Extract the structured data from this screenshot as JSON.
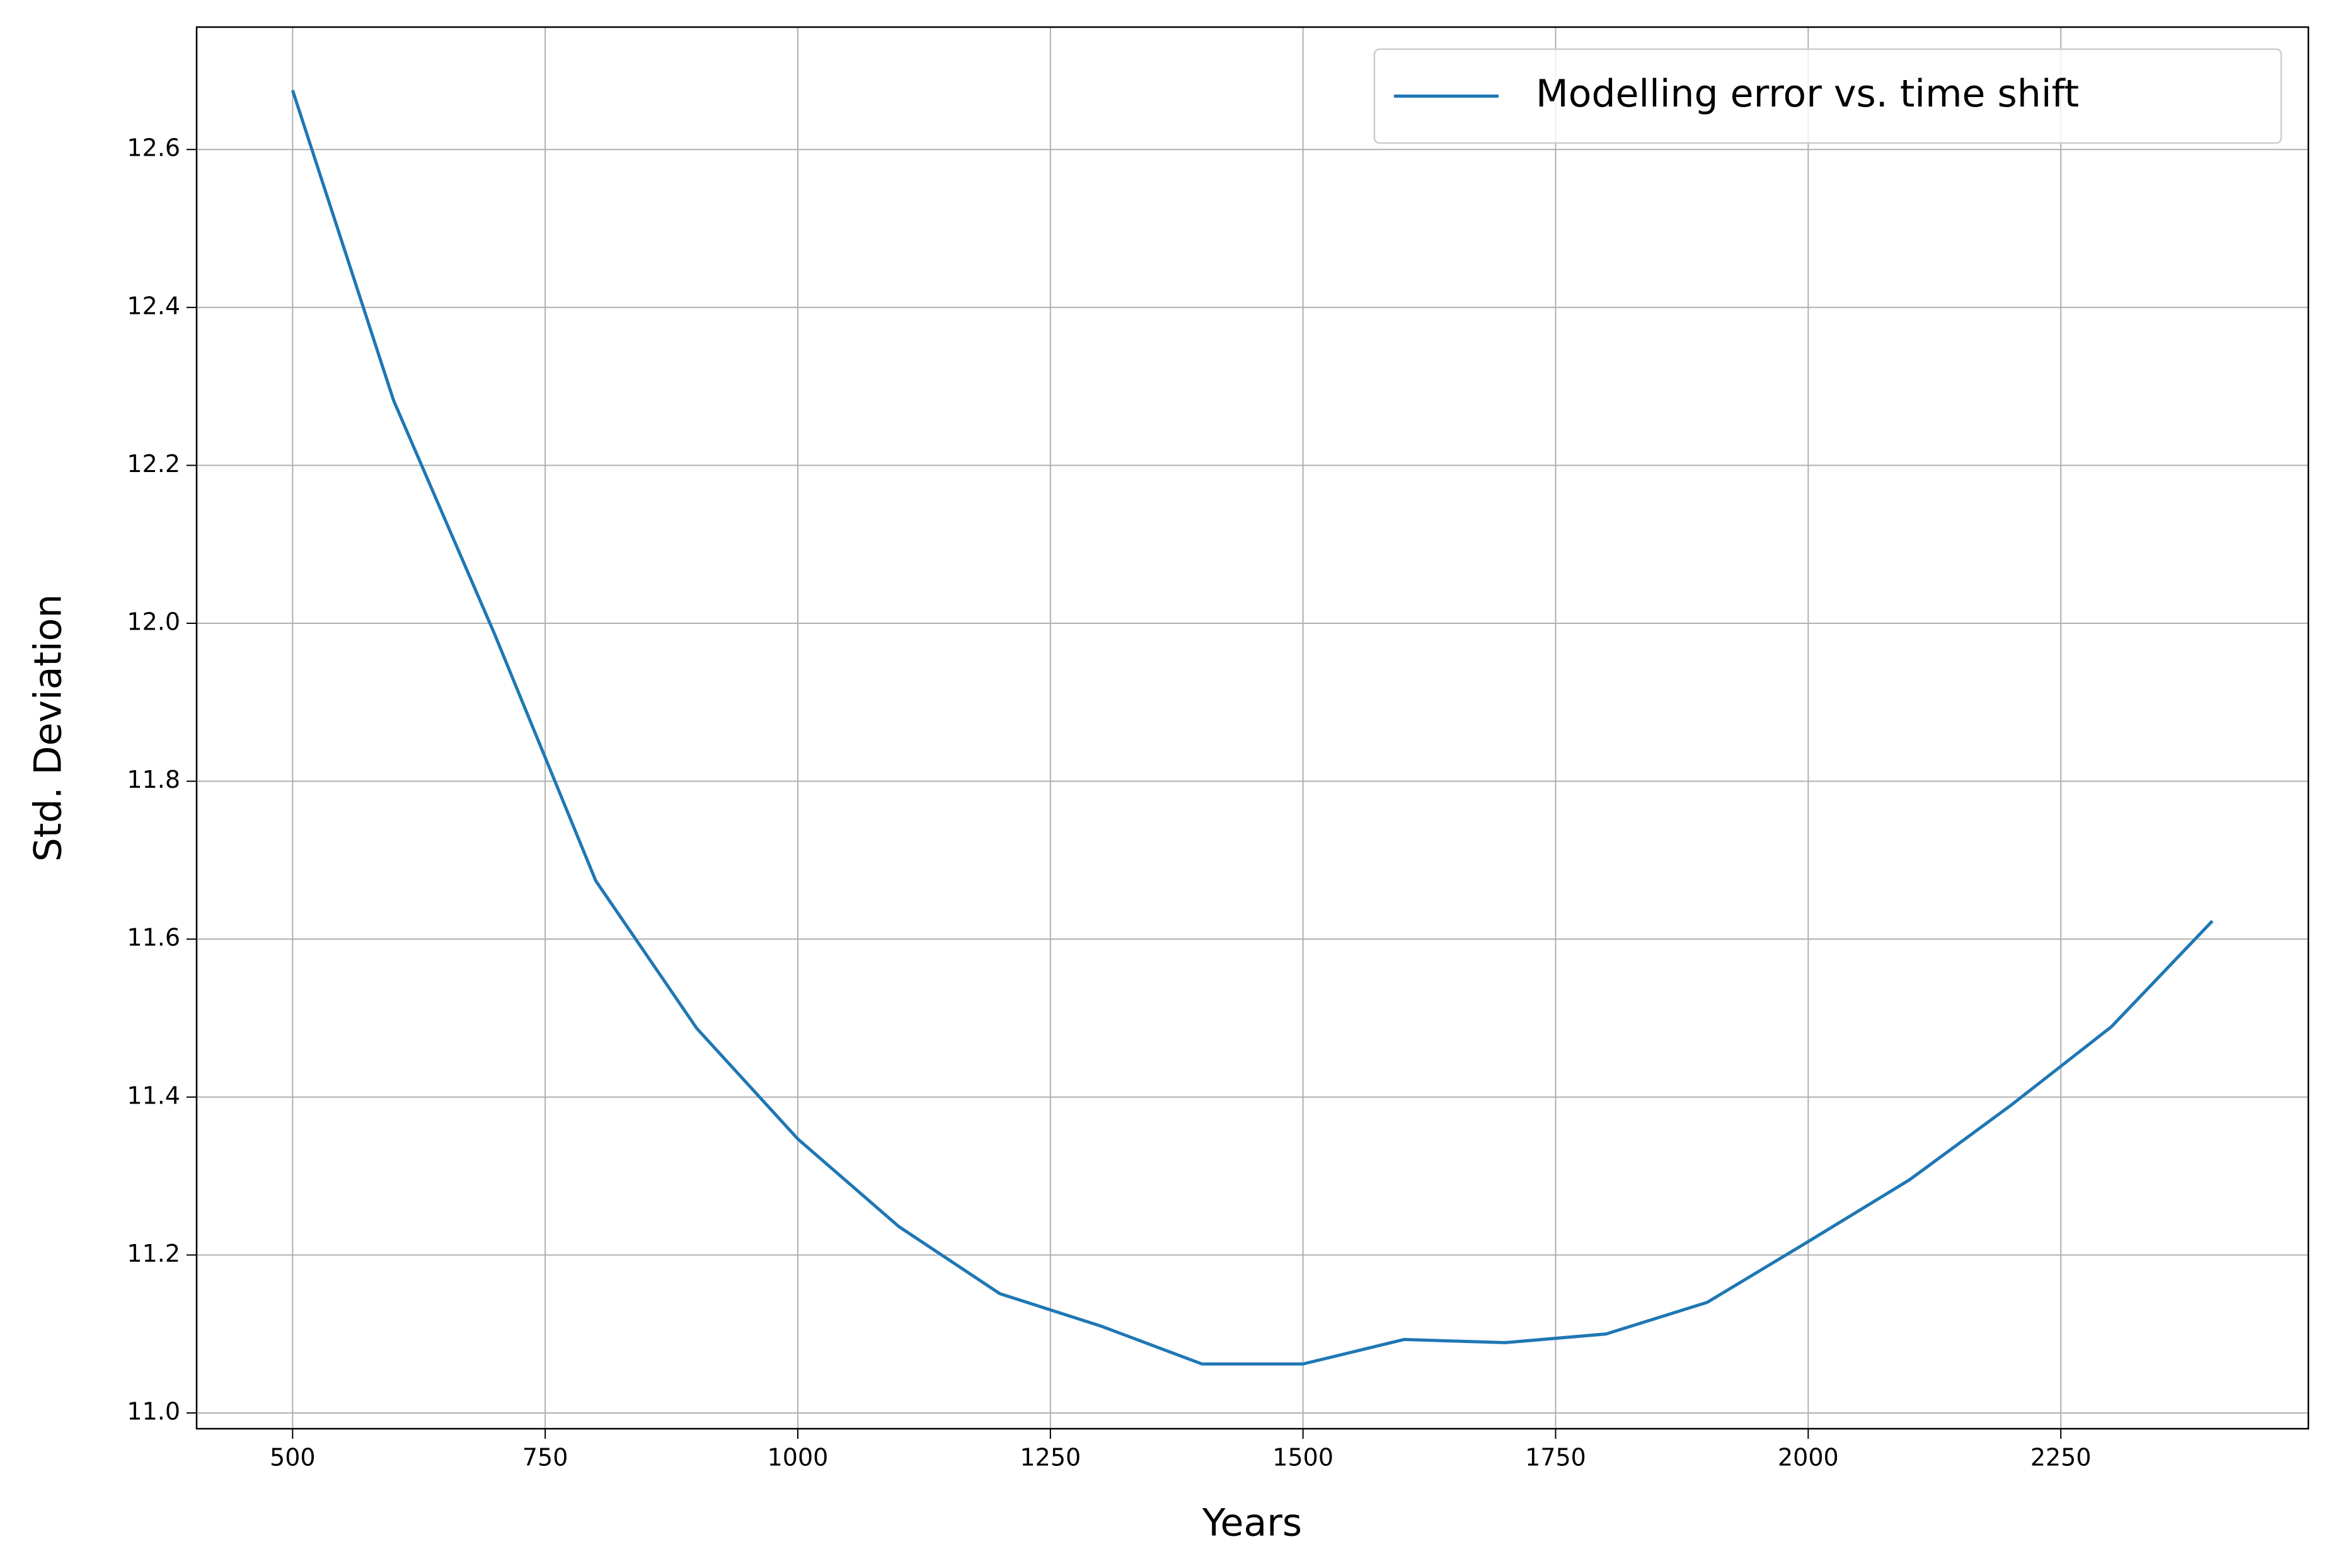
{
  "chart_data": {
    "type": "line",
    "xlabel": "Years",
    "ylabel": "Std. Deviation",
    "x": [
      500,
      600,
      700,
      800,
      900,
      1000,
      1100,
      1200,
      1300,
      1400,
      1500,
      1600,
      1700,
      1800,
      1900,
      2000,
      2100,
      2200,
      2300,
      2400
    ],
    "series": [
      {
        "name": "Modelling error vs. time shift",
        "color": "#1f77b4",
        "values": [
          12.675,
          12.282,
          11.986,
          11.674,
          11.487,
          11.347,
          11.236,
          11.151,
          11.11,
          11.062,
          11.062,
          11.093,
          11.089,
          11.1,
          11.14,
          11.217,
          11.295,
          11.389,
          11.489,
          11.623
        ]
      }
    ],
    "xlim": [
      405,
      2495
    ],
    "ylim": [
      10.98,
      12.755
    ],
    "xticks": [
      500,
      750,
      1000,
      1250,
      1500,
      1750,
      2000,
      2250
    ],
    "yticks": [
      {
        "value": 11,
        "label": "11.0"
      },
      11.2,
      11.4,
      11.6,
      11.8,
      {
        "value": 12,
        "label": "12.0"
      },
      12.2,
      12.4,
      12.6
    ],
    "grid": true,
    "legend": "upper right"
  }
}
